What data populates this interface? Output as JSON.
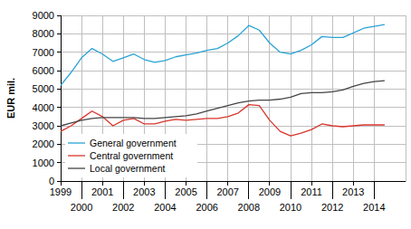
{
  "chart_data": {
    "type": "line",
    "y_label": "EUR mil.",
    "x": [
      1999.0,
      1999.5,
      2000.0,
      2000.5,
      2001.0,
      2001.5,
      2002.0,
      2002.5,
      2003.0,
      2003.5,
      2004.0,
      2004.5,
      2005.0,
      2005.5,
      2006.0,
      2006.5,
      2007.0,
      2007.5,
      2008.0,
      2008.5,
      2009.0,
      2009.5,
      2010.0,
      2010.5,
      2011.0,
      2011.5,
      2012.0,
      2012.5,
      2013.0,
      2013.5,
      2014.0,
      2014.5
    ],
    "series": [
      {
        "name": "General government",
        "color": "#2aa3d6",
        "values": [
          5200,
          5900,
          6700,
          7200,
          6900,
          6500,
          6700,
          6900,
          6600,
          6450,
          6550,
          6750,
          6850,
          6950,
          7100,
          7200,
          7500,
          7900,
          8450,
          8200,
          7500,
          7000,
          6900,
          7100,
          7400,
          7850,
          7800,
          7800,
          8050,
          8300,
          8400,
          8500
        ]
      },
      {
        "name": "Central government",
        "color": "#d8352c",
        "values": [
          2700,
          3000,
          3400,
          3800,
          3500,
          3000,
          3300,
          3400,
          3100,
          3100,
          3250,
          3350,
          3300,
          3350,
          3400,
          3400,
          3500,
          3700,
          4150,
          4100,
          3300,
          2700,
          2450,
          2600,
          2800,
          3100,
          3000,
          2950,
          3000,
          3050,
          3050,
          3050
        ]
      },
      {
        "name": "Local government",
        "color": "#454545",
        "values": [
          3000,
          3150,
          3300,
          3400,
          3450,
          3450,
          3450,
          3450,
          3400,
          3400,
          3450,
          3500,
          3550,
          3650,
          3800,
          3950,
          4100,
          4250,
          4350,
          4400,
          4400,
          4450,
          4550,
          4750,
          4800,
          4800,
          4850,
          4950,
          5150,
          5300,
          5400,
          5450
        ]
      }
    ],
    "xlim": [
      1999,
      2015.5
    ],
    "xticks": [
      1999,
      2000,
      2001,
      2002,
      2003,
      2004,
      2005,
      2006,
      2007,
      2008,
      2009,
      2010,
      2011,
      2012,
      2013,
      2014
    ],
    "ylim": [
      0,
      9000
    ],
    "yticks": [
      0,
      1000,
      2000,
      3000,
      4000,
      5000,
      6000,
      7000,
      8000,
      9000
    ],
    "grid": true,
    "legend": "lower left"
  }
}
